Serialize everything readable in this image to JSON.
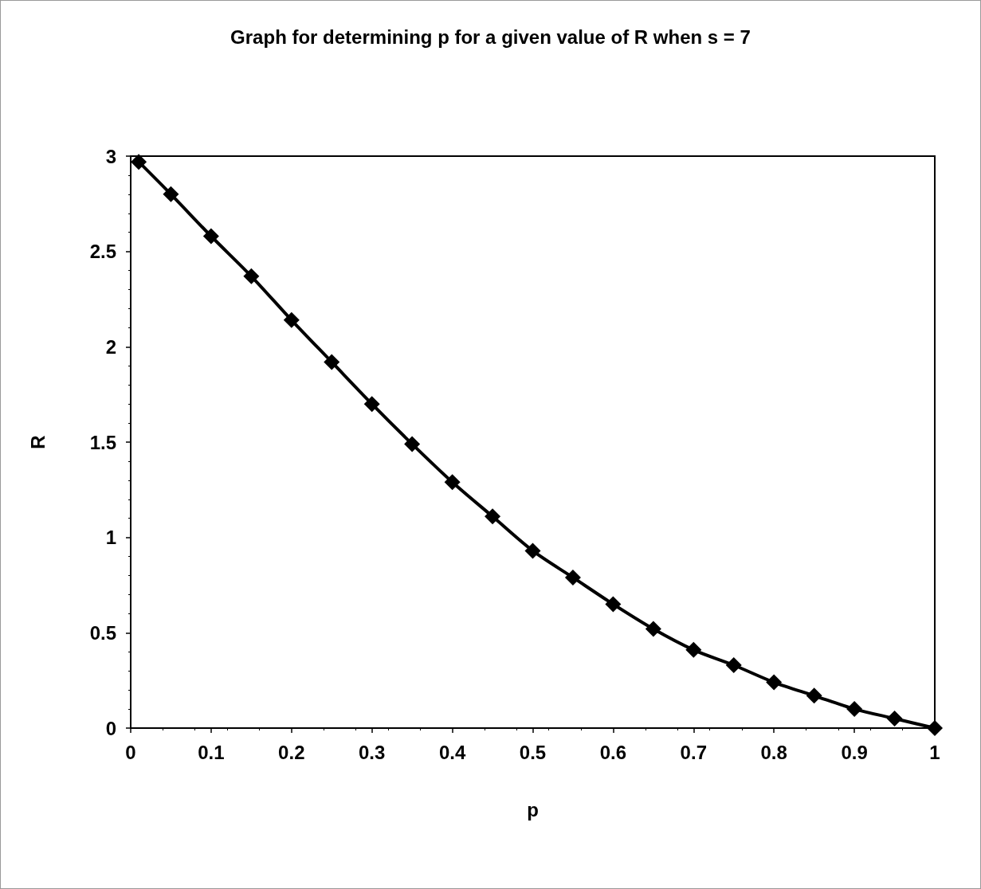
{
  "chart_data": {
    "type": "line",
    "title": "Graph for determining p for a given value of R when s = 7",
    "xlabel": "p",
    "ylabel": "R",
    "x": [
      0.01,
      0.05,
      0.1,
      0.15,
      0.2,
      0.25,
      0.3,
      0.35,
      0.4,
      0.45,
      0.5,
      0.55,
      0.6,
      0.65,
      0.7,
      0.75,
      0.8,
      0.85,
      0.9,
      0.95,
      1
    ],
    "series": [
      {
        "color": "#000000",
        "values": [
          2.97,
          2.8,
          2.58,
          2.37,
          2.14,
          1.92,
          1.7,
          1.49,
          1.29,
          1.11,
          0.93,
          0.79,
          0.65,
          0.52,
          0.41,
          0.33,
          0.24,
          0.17,
          0.1,
          0.05,
          0
        ]
      }
    ],
    "xlim": [
      0,
      1
    ],
    "xticks": [
      0,
      0.1,
      0.2,
      0.3,
      0.4,
      0.5,
      0.6,
      0.7,
      0.8,
      0.9,
      1
    ],
    "ylim": [
      0,
      3
    ],
    "yticks": [
      0,
      0.5,
      1,
      1.5,
      2,
      2.5,
      3
    ],
    "grid": false,
    "marker": "diamond",
    "line_style": "solid"
  }
}
